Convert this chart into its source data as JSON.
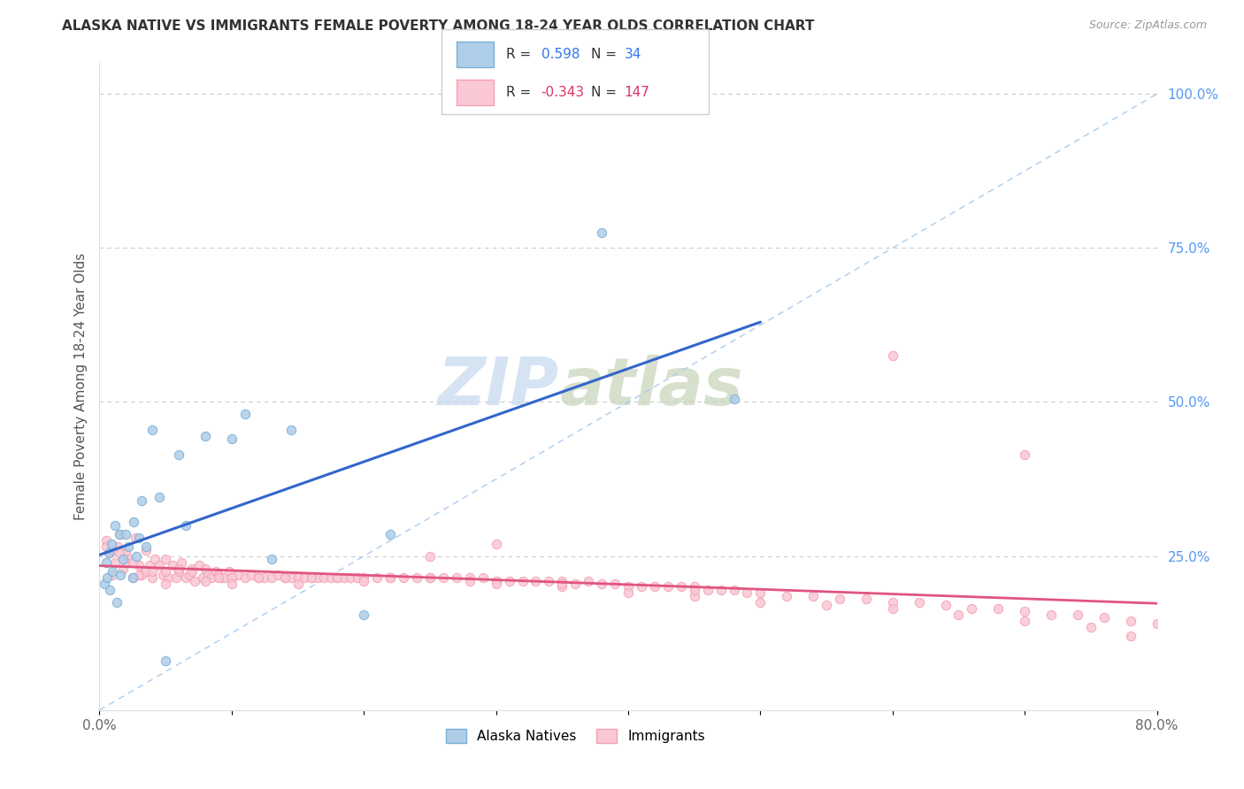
{
  "title": "ALASKA NATIVE VS IMMIGRANTS FEMALE POVERTY AMONG 18-24 YEAR OLDS CORRELATION CHART",
  "source": "Source: ZipAtlas.com",
  "ylabel": "Female Poverty Among 18-24 Year Olds",
  "xlim": [
    0.0,
    0.8
  ],
  "ylim": [
    0.0,
    1.05
  ],
  "color_alaska": "#7bafd4",
  "color_alaska_fill": "#aecde8",
  "color_immigrants": "#f4a0b5",
  "color_immigrants_fill": "#f9c8d4",
  "color_trend_alaska": "#3366cc",
  "color_trend_immigrants": "#e05580",
  "color_dashed": "#aaccee",
  "alaska_x": [
    0.004,
    0.005,
    0.006,
    0.007,
    0.008,
    0.009,
    0.01,
    0.012,
    0.013,
    0.015,
    0.016,
    0.018,
    0.02,
    0.022,
    0.025,
    0.026,
    0.028,
    0.03,
    0.032,
    0.035,
    0.04,
    0.045,
    0.05,
    0.06,
    0.065,
    0.08,
    0.1,
    0.11,
    0.13,
    0.145,
    0.2,
    0.22,
    0.38,
    0.48
  ],
  "alaska_y": [
    0.205,
    0.24,
    0.215,
    0.255,
    0.195,
    0.27,
    0.225,
    0.3,
    0.175,
    0.285,
    0.22,
    0.245,
    0.285,
    0.265,
    0.215,
    0.305,
    0.25,
    0.28,
    0.34,
    0.265,
    0.455,
    0.345,
    0.08,
    0.415,
    0.3,
    0.445,
    0.44,
    0.48,
    0.245,
    0.455,
    0.155,
    0.285,
    0.775,
    0.505
  ],
  "imm_x": [
    0.005,
    0.008,
    0.01,
    0.012,
    0.014,
    0.016,
    0.018,
    0.02,
    0.022,
    0.025,
    0.027,
    0.03,
    0.032,
    0.035,
    0.038,
    0.04,
    0.042,
    0.045,
    0.048,
    0.05,
    0.052,
    0.055,
    0.058,
    0.06,
    0.062,
    0.065,
    0.068,
    0.07,
    0.072,
    0.075,
    0.078,
    0.08,
    0.082,
    0.085,
    0.088,
    0.09,
    0.092,
    0.095,
    0.098,
    0.1,
    0.105,
    0.11,
    0.115,
    0.12,
    0.125,
    0.13,
    0.135,
    0.14,
    0.145,
    0.15,
    0.155,
    0.16,
    0.165,
    0.17,
    0.175,
    0.18,
    0.185,
    0.19,
    0.195,
    0.2,
    0.21,
    0.22,
    0.23,
    0.24,
    0.25,
    0.26,
    0.27,
    0.28,
    0.29,
    0.3,
    0.31,
    0.32,
    0.33,
    0.34,
    0.35,
    0.36,
    0.37,
    0.38,
    0.39,
    0.4,
    0.41,
    0.42,
    0.43,
    0.44,
    0.45,
    0.46,
    0.47,
    0.48,
    0.49,
    0.5,
    0.52,
    0.54,
    0.56,
    0.58,
    0.6,
    0.62,
    0.64,
    0.66,
    0.68,
    0.7,
    0.72,
    0.74,
    0.76,
    0.78,
    0.8,
    0.005,
    0.01,
    0.015,
    0.02,
    0.025,
    0.03,
    0.035,
    0.04,
    0.05,
    0.06,
    0.07,
    0.08,
    0.09,
    0.1,
    0.12,
    0.14,
    0.16,
    0.18,
    0.2,
    0.22,
    0.25,
    0.28,
    0.3,
    0.35,
    0.4,
    0.45,
    0.5,
    0.6,
    0.65,
    0.7,
    0.75,
    0.78,
    0.6,
    0.7,
    0.3,
    0.1,
    0.05,
    0.15,
    0.25,
    0.35,
    0.45,
    0.55
  ],
  "imm_y": [
    0.275,
    0.255,
    0.22,
    0.24,
    0.265,
    0.285,
    0.23,
    0.255,
    0.245,
    0.215,
    0.28,
    0.235,
    0.22,
    0.26,
    0.235,
    0.215,
    0.245,
    0.235,
    0.22,
    0.245,
    0.215,
    0.235,
    0.215,
    0.225,
    0.24,
    0.215,
    0.22,
    0.23,
    0.21,
    0.235,
    0.215,
    0.23,
    0.22,
    0.215,
    0.225,
    0.22,
    0.215,
    0.215,
    0.225,
    0.215,
    0.22,
    0.215,
    0.22,
    0.215,
    0.215,
    0.215,
    0.22,
    0.215,
    0.215,
    0.215,
    0.215,
    0.215,
    0.215,
    0.215,
    0.215,
    0.215,
    0.215,
    0.215,
    0.215,
    0.215,
    0.215,
    0.215,
    0.215,
    0.215,
    0.215,
    0.215,
    0.215,
    0.215,
    0.215,
    0.21,
    0.21,
    0.21,
    0.21,
    0.21,
    0.21,
    0.205,
    0.21,
    0.205,
    0.205,
    0.2,
    0.2,
    0.2,
    0.2,
    0.2,
    0.2,
    0.195,
    0.195,
    0.195,
    0.19,
    0.19,
    0.185,
    0.185,
    0.18,
    0.18,
    0.175,
    0.175,
    0.17,
    0.165,
    0.165,
    0.16,
    0.155,
    0.155,
    0.15,
    0.145,
    0.14,
    0.265,
    0.26,
    0.255,
    0.24,
    0.24,
    0.22,
    0.225,
    0.225,
    0.225,
    0.23,
    0.225,
    0.21,
    0.215,
    0.215,
    0.215,
    0.215,
    0.215,
    0.215,
    0.21,
    0.215,
    0.215,
    0.21,
    0.205,
    0.2,
    0.19,
    0.185,
    0.175,
    0.165,
    0.155,
    0.145,
    0.135,
    0.12,
    0.575,
    0.415,
    0.27,
    0.205,
    0.205,
    0.205,
    0.25,
    0.205,
    0.195,
    0.17
  ]
}
